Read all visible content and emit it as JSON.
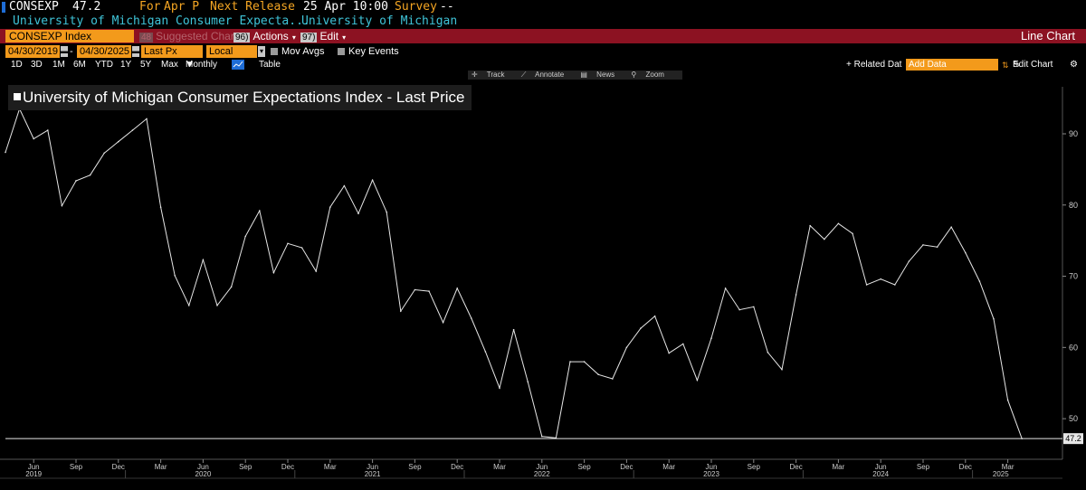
{
  "header": {
    "ticker": "CONSEXP",
    "last": "47.2",
    "for_label": "For",
    "period": "Apr P",
    "next_release_label": "Next Release",
    "next_release": "25 Apr 10:00",
    "survey_label": "Survey",
    "survey_value": "--",
    "long_name": "University of Michigan Consumer Expecta...",
    "source": "University of Michigan"
  },
  "toolbar": {
    "security": "CONSEXP Index",
    "suggested_num": "48",
    "suggested": "Suggested Charts",
    "actions_num": "96)",
    "actions": "Actions",
    "edit_num": "97)",
    "edit": "Edit",
    "chart_type": "Line Chart"
  },
  "controls": {
    "start_date": "04/30/2019",
    "end_date": "04/30/2025",
    "field": "Last Px",
    "currency": "Local CCY",
    "mov_avgs": "Mov Avgs",
    "key_events": "Key Events",
    "periods": [
      "1D",
      "3D",
      "1M",
      "6M",
      "YTD",
      "1Y",
      "5Y",
      "Max"
    ],
    "frequency": "Monthly",
    "table": "Table",
    "related_data": "+ Related Dat",
    "add_data_placeholder": "Add Data",
    "edit_chart": "Edit Chart"
  },
  "chart_tools": [
    "Track",
    "Annotate",
    "News",
    "Zoom"
  ],
  "chart_data": {
    "type": "line",
    "title": "University of Michigan Consumer Expectations Index - Last Price",
    "series": [
      {
        "name": "University of Michigan Consumer Expectations Index - Last Price",
        "x": [
          "2019-04",
          "2019-05",
          "2019-06",
          "2019-07",
          "2019-08",
          "2019-09",
          "2019-10",
          "2019-11",
          "2019-12",
          "2020-01",
          "2020-02",
          "2020-03",
          "2020-04",
          "2020-05",
          "2020-06",
          "2020-07",
          "2020-08",
          "2020-09",
          "2020-10",
          "2020-11",
          "2020-12",
          "2021-01",
          "2021-02",
          "2021-03",
          "2021-04",
          "2021-05",
          "2021-06",
          "2021-07",
          "2021-08",
          "2021-09",
          "2021-10",
          "2021-11",
          "2021-12",
          "2022-01",
          "2022-02",
          "2022-03",
          "2022-04",
          "2022-05",
          "2022-06",
          "2022-07",
          "2022-08",
          "2022-09",
          "2022-10",
          "2022-11",
          "2022-12",
          "2023-01",
          "2023-02",
          "2023-03",
          "2023-04",
          "2023-05",
          "2023-06",
          "2023-07",
          "2023-08",
          "2023-09",
          "2023-10",
          "2023-11",
          "2023-12",
          "2024-01",
          "2024-02",
          "2024-03",
          "2024-04",
          "2024-05",
          "2024-06",
          "2024-07",
          "2024-08",
          "2024-09",
          "2024-10",
          "2024-11",
          "2024-12",
          "2025-01",
          "2025-02",
          "2025-03",
          "2025-04"
        ],
        "values": [
          87.4,
          93.5,
          89.3,
          90.5,
          79.9,
          83.4,
          84.2,
          87.3,
          88.9,
          90.5,
          92.1,
          79.7,
          70.1,
          65.9,
          72.3,
          65.9,
          68.5,
          75.6,
          79.2,
          70.5,
          74.6,
          74.0,
          70.7,
          79.7,
          82.7,
          78.8,
          83.5,
          79.0,
          65.1,
          68.1,
          67.9,
          63.5,
          68.3,
          64.1,
          59.4,
          54.3,
          62.5,
          55.2,
          47.5,
          47.3,
          58.0,
          58.0,
          56.2,
          55.6,
          60.0,
          62.7,
          64.4,
          59.2,
          60.5,
          55.4,
          61.3,
          68.3,
          65.3,
          65.7,
          59.3,
          56.9,
          67.4,
          77.1,
          75.2,
          77.4,
          76.0,
          68.8,
          69.6,
          68.8,
          72.1,
          74.4,
          74.1,
          76.9,
          73.3,
          69.3,
          64.0,
          52.6,
          47.2
        ]
      }
    ],
    "y_ticks": [
      50,
      60,
      70,
      80,
      90
    ],
    "ylim": [
      44.3,
      96.6
    ],
    "x_month_ticks": [
      "Jun",
      "Sep",
      "Dec",
      "Mar",
      "Jun",
      "Sep",
      "Dec",
      "Mar",
      "Jun",
      "Sep",
      "Dec",
      "Mar",
      "Jun",
      "Sep",
      "Dec",
      "Mar",
      "Jun",
      "Sep",
      "Dec",
      "Mar",
      "Jun",
      "Sep",
      "Dec",
      "Mar"
    ],
    "x_year_labels": [
      "2019",
      "2020",
      "2021",
      "2022",
      "2023",
      "2024",
      "2025"
    ],
    "last_value_label": "47.2",
    "grid": false,
    "line_color": "#e6e6e6",
    "background": "#000000"
  },
  "colors": {
    "accent_orange": "#f39a1b",
    "bar_red": "#8c1222",
    "cyan": "#3fc4d8",
    "amber": "#f5a623"
  }
}
